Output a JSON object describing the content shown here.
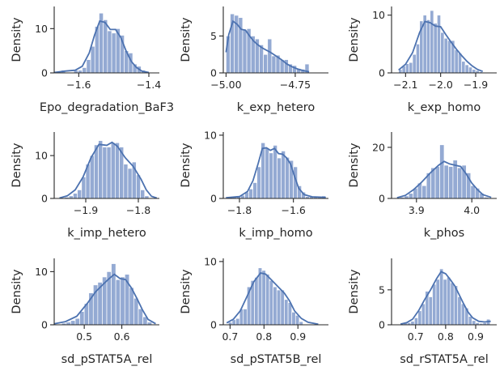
{
  "chart_data": [
    {
      "type": "histogram",
      "xlabel": "Epo_degradation_BaF3",
      "ylabel": "Density",
      "xlim": [
        -1.67,
        -1.37
      ],
      "ylim": [
        0,
        15
      ],
      "xticks": [
        {
          "value": -1.6,
          "label": "−1.6"
        },
        {
          "value": -1.4,
          "label": "−1.4"
        }
      ],
      "yticks": [
        {
          "value": 0,
          "label": "0"
        },
        {
          "value": 10,
          "label": "10"
        }
      ],
      "bin_edges": [
        -1.65,
        -1.638,
        -1.626,
        -1.614,
        -1.602,
        -1.59,
        -1.578,
        -1.566,
        -1.554,
        -1.542,
        -1.53,
        -1.518,
        -1.506,
        -1.494,
        -1.482,
        -1.47,
        -1.458,
        -1.446,
        -1.434,
        -1.422,
        -1.41
      ],
      "densities": [
        0.6,
        0,
        0,
        0.6,
        0.6,
        1.2,
        3.0,
        6.0,
        10.5,
        13.5,
        12.0,
        9.5,
        9.0,
        10.0,
        8.5,
        5.0,
        4.5,
        2.0,
        1.5,
        0.6
      ],
      "kde": [
        [
          -1.67,
          0.1
        ],
        [
          -1.64,
          0.4
        ],
        [
          -1.61,
          0.6
        ],
        [
          -1.59,
          1.5
        ],
        [
          -1.57,
          4.5
        ],
        [
          -1.555,
          8.5
        ],
        [
          -1.54,
          11.7
        ],
        [
          -1.525,
          11.4
        ],
        [
          -1.51,
          9.8
        ],
        [
          -1.495,
          9.8
        ],
        [
          -1.48,
          8.0
        ],
        [
          -1.465,
          5.0
        ],
        [
          -1.45,
          2.6
        ],
        [
          -1.435,
          1.2
        ],
        [
          -1.42,
          0.4
        ],
        [
          -1.4,
          0.1
        ]
      ]
    },
    {
      "type": "histogram",
      "xlabel": "k_exp_hetero",
      "ylabel": "Density",
      "xlim": [
        -5.01,
        -4.63
      ],
      "ylim": [
        0,
        9
      ],
      "xticks": [
        {
          "value": -5.0,
          "label": "−5.00"
        },
        {
          "value": -4.75,
          "label": "−4.75"
        }
      ],
      "yticks": [
        {
          "value": 0,
          "label": "0"
        },
        {
          "value": 5,
          "label": "5"
        }
      ],
      "bin_edges": [
        -5.0,
        -4.985,
        -4.97,
        -4.955,
        -4.94,
        -4.925,
        -4.91,
        -4.895,
        -4.88,
        -4.865,
        -4.85,
        -4.835,
        -4.82,
        -4.805,
        -4.79,
        -4.775,
        -4.76,
        -4.745,
        -4.73,
        -4.715,
        -4.7
      ],
      "densities": [
        5.0,
        8.0,
        7.8,
        7.5,
        5.8,
        6.0,
        5.0,
        4.6,
        3.8,
        2.5,
        4.6,
        2.3,
        2.4,
        1.8,
        1.8,
        1.2,
        1.0,
        0.6,
        0.5,
        1.2
      ],
      "kde": [
        [
          -5.0,
          2.8
        ],
        [
          -4.99,
          5.2
        ],
        [
          -4.975,
          7.0
        ],
        [
          -4.96,
          6.6
        ],
        [
          -4.945,
          5.9
        ],
        [
          -4.93,
          5.8
        ],
        [
          -4.915,
          5.0
        ],
        [
          -4.9,
          4.3
        ],
        [
          -4.885,
          3.8
        ],
        [
          -4.87,
          3.4
        ],
        [
          -4.855,
          3.1
        ],
        [
          -4.84,
          2.8
        ],
        [
          -4.82,
          2.3
        ],
        [
          -4.8,
          1.8
        ],
        [
          -4.78,
          1.2
        ],
        [
          -4.76,
          0.8
        ],
        [
          -4.74,
          0.5
        ],
        [
          -4.72,
          0.3
        ],
        [
          -4.7,
          0.15
        ]
      ]
    },
    {
      "type": "histogram",
      "xlabel": "k_exp_homo",
      "ylabel": "Density",
      "xlim": [
        -2.14,
        -1.84
      ],
      "ylim": [
        0,
        11.5
      ],
      "xticks": [
        {
          "value": -2.1,
          "label": "−2.1"
        },
        {
          "value": -2.0,
          "label": "−2.0"
        },
        {
          "value": -1.9,
          "label": "−1.9"
        }
      ],
      "yticks": [
        {
          "value": 0,
          "label": "0"
        },
        {
          "value": 10,
          "label": "10"
        }
      ],
      "bin_edges": [
        -2.12,
        -2.11,
        -2.1,
        -2.09,
        -2.08,
        -2.07,
        -2.06,
        -2.05,
        -2.04,
        -2.03,
        -2.02,
        -2.01,
        -2.0,
        -1.99,
        -1.98,
        -1.97,
        -1.96,
        -1.95,
        -1.94,
        -1.93,
        -1.92,
        -1.91,
        -1.9,
        -1.89,
        -1.88
      ],
      "densities": [
        0.6,
        1.2,
        1.6,
        1.8,
        3.2,
        5.0,
        9.0,
        10.0,
        9.2,
        10.8,
        8.6,
        10.0,
        7.0,
        6.0,
        5.6,
        5.6,
        4.0,
        3.4,
        2.0,
        1.4,
        1.0,
        0.6,
        0.4,
        0.2
      ],
      "kde": [
        [
          -2.12,
          0.5
        ],
        [
          -2.1,
          1.5
        ],
        [
          -2.08,
          3.5
        ],
        [
          -2.06,
          7.0
        ],
        [
          -2.045,
          8.9
        ],
        [
          -2.03,
          8.7
        ],
        [
          -2.015,
          8.1
        ],
        [
          -2.0,
          8.0
        ],
        [
          -1.985,
          6.6
        ],
        [
          -1.97,
          5.3
        ],
        [
          -1.955,
          4.1
        ],
        [
          -1.94,
          3.0
        ],
        [
          -1.925,
          2.0
        ],
        [
          -1.91,
          1.2
        ],
        [
          -1.895,
          0.6
        ],
        [
          -1.88,
          0.25
        ]
      ]
    },
    {
      "type": "histogram",
      "xlabel": "k_imp_hetero",
      "ylabel": "Density",
      "xlim": [
        -1.96,
        -1.76
      ],
      "ylim": [
        0,
        15.5
      ],
      "xticks": [
        {
          "value": -1.9,
          "label": "−1.9"
        },
        {
          "value": -1.8,
          "label": "−1.8"
        }
      ],
      "yticks": [
        {
          "value": 0,
          "label": "0"
        },
        {
          "value": 10,
          "label": "10"
        }
      ],
      "bin_edges": [
        -1.94,
        -1.932,
        -1.924,
        -1.916,
        -1.908,
        -1.9,
        -1.892,
        -1.884,
        -1.876,
        -1.868,
        -1.86,
        -1.852,
        -1.844,
        -1.836,
        -1.828,
        -1.82,
        -1.812,
        -1.804,
        -1.796,
        -1.788,
        -1.78
      ],
      "densities": [
        0.3,
        0.6,
        1.2,
        2.0,
        5.0,
        8.0,
        10.0,
        12.5,
        13.5,
        12.0,
        12.0,
        13.0,
        13.0,
        12.0,
        8.0,
        7.0,
        8.5,
        5.5,
        2.0,
        0.6
      ],
      "kde": [
        [
          -1.95,
          0.1
        ],
        [
          -1.935,
          0.6
        ],
        [
          -1.92,
          2.0
        ],
        [
          -1.905,
          5.0
        ],
        [
          -1.89,
          9.5
        ],
        [
          -1.875,
          12.6
        ],
        [
          -1.86,
          12.4
        ],
        [
          -1.85,
          13.1
        ],
        [
          -1.84,
          12.2
        ],
        [
          -1.825,
          9.5
        ],
        [
          -1.81,
          7.5
        ],
        [
          -1.795,
          4.5
        ],
        [
          -1.785,
          2.0
        ],
        [
          -1.775,
          0.5
        ],
        [
          -1.765,
          0.1
        ]
      ]
    },
    {
      "type": "histogram",
      "xlabel": "k_imp_homo",
      "ylabel": "Density",
      "xlim": [
        -1.86,
        -1.47
      ],
      "ylim": [
        0,
        10.5
      ],
      "xticks": [
        {
          "value": -1.8,
          "label": "−1.8"
        },
        {
          "value": -1.6,
          "label": "−1.6"
        }
      ],
      "yticks": [
        {
          "value": 0,
          "label": "0"
        },
        {
          "value": 10,
          "label": "10"
        }
      ],
      "bin_edges": [
        -1.84,
        -1.825,
        -1.81,
        -1.795,
        -1.78,
        -1.765,
        -1.75,
        -1.735,
        -1.72,
        -1.705,
        -1.69,
        -1.675,
        -1.66,
        -1.645,
        -1.63,
        -1.615,
        -1.6,
        -1.585,
        -1.57,
        -1.555,
        -1.54,
        -1.525,
        -1.51,
        -1.495,
        -1.48
      ],
      "densities": [
        0.2,
        0.3,
        0.3,
        0.5,
        1.0,
        1.5,
        2.5,
        5.0,
        8.8,
        8.0,
        7.2,
        8.4,
        6.4,
        7.5,
        6.5,
        6.0,
        5.0,
        2.0,
        1.0,
        0.3,
        0.3,
        0.2,
        0.2,
        0.4
      ],
      "kde": [
        [
          -1.85,
          0.1
        ],
        [
          -1.8,
          0.3
        ],
        [
          -1.77,
          1.1
        ],
        [
          -1.75,
          2.8
        ],
        [
          -1.73,
          5.6
        ],
        [
          -1.715,
          7.9
        ],
        [
          -1.7,
          8.0
        ],
        [
          -1.685,
          7.6
        ],
        [
          -1.67,
          7.9
        ],
        [
          -1.655,
          7.1
        ],
        [
          -1.64,
          7.0
        ],
        [
          -1.625,
          6.4
        ],
        [
          -1.61,
          5.4
        ],
        [
          -1.595,
          3.4
        ],
        [
          -1.58,
          1.6
        ],
        [
          -1.56,
          0.6
        ],
        [
          -1.53,
          0.25
        ],
        [
          -1.5,
          0.2
        ],
        [
          -1.48,
          0.15
        ]
      ]
    },
    {
      "type": "histogram",
      "xlabel": "k_phos",
      "ylabel": "Density",
      "xlim": [
        3.855,
        4.045
      ],
      "ylim": [
        0,
        26
      ],
      "xticks": [
        {
          "value": 3.9,
          "label": "3.9"
        },
        {
          "value": 4.0,
          "label": "4.0"
        }
      ],
      "yticks": [
        {
          "value": 0,
          "label": "0"
        },
        {
          "value": 20,
          "label": "20"
        }
      ],
      "bin_edges": [
        3.87,
        3.878,
        3.886,
        3.894,
        3.902,
        3.91,
        3.918,
        3.926,
        3.934,
        3.942,
        3.95,
        3.958,
        3.966,
        3.974,
        3.982,
        3.99,
        3.998,
        4.006,
        4.014,
        4.022,
        4.03
      ],
      "densities": [
        0.5,
        1.0,
        2.0,
        4.0,
        6.0,
        5.0,
        10.0,
        12.0,
        12.5,
        21.0,
        13.0,
        12.5,
        15.0,
        12.0,
        13.0,
        10.0,
        5.0,
        4.0,
        2.0,
        0.5
      ],
      "kde": [
        [
          3.865,
          0.3
        ],
        [
          3.88,
          1.2
        ],
        [
          3.895,
          3.5
        ],
        [
          3.91,
          6.5
        ],
        [
          3.925,
          10.0
        ],
        [
          3.94,
          13.0
        ],
        [
          3.95,
          14.5
        ],
        [
          3.96,
          13.5
        ],
        [
          3.97,
          13.0
        ],
        [
          3.98,
          12.5
        ],
        [
          3.99,
          9.5
        ],
        [
          4.0,
          6.0
        ],
        [
          4.01,
          3.5
        ],
        [
          4.02,
          1.5
        ],
        [
          4.035,
          0.4
        ]
      ]
    },
    {
      "type": "histogram",
      "xlabel": "sd_pSTAT5A_rel",
      "ylabel": "Density",
      "xlim": [
        0.42,
        0.7
      ],
      "ylim": [
        0,
        12.5
      ],
      "xticks": [
        {
          "value": 0.5,
          "label": "0.5"
        },
        {
          "value": 0.6,
          "label": "0.6"
        }
      ],
      "yticks": [
        {
          "value": 0,
          "label": "0"
        },
        {
          "value": 10,
          "label": "10"
        }
      ],
      "bin_edges": [
        0.44,
        0.452,
        0.464,
        0.476,
        0.488,
        0.5,
        0.512,
        0.524,
        0.536,
        0.548,
        0.56,
        0.572,
        0.584,
        0.596,
        0.608,
        0.62,
        0.632,
        0.644,
        0.656,
        0.668,
        0.68
      ],
      "densities": [
        0.3,
        0.5,
        0.8,
        1.2,
        2.5,
        4.0,
        6.0,
        7.5,
        8.0,
        9.0,
        10.0,
        11.5,
        8.5,
        9.0,
        9.5,
        7.0,
        5.0,
        3.0,
        1.5,
        0.5
      ],
      "kde": [
        [
          0.42,
          0.2
        ],
        [
          0.45,
          0.6
        ],
        [
          0.48,
          1.6
        ],
        [
          0.51,
          4.2
        ],
        [
          0.53,
          6.2
        ],
        [
          0.55,
          7.6
        ],
        [
          0.565,
          8.6
        ],
        [
          0.58,
          9.5
        ],
        [
          0.595,
          8.7
        ],
        [
          0.61,
          8.5
        ],
        [
          0.625,
          7.0
        ],
        [
          0.64,
          5.0
        ],
        [
          0.655,
          2.8
        ],
        [
          0.67,
          1.0
        ],
        [
          0.69,
          0.2
        ]
      ]
    },
    {
      "type": "histogram",
      "xlabel": "sd_pSTAT5B_rel",
      "ylabel": "Density",
      "xlim": [
        0.68,
        0.99
      ],
      "ylim": [
        0,
        10.5
      ],
      "xticks": [
        {
          "value": 0.7,
          "label": "0.7"
        },
        {
          "value": 0.8,
          "label": "0.8"
        },
        {
          "value": 0.9,
          "label": "0.9"
        }
      ],
      "yticks": [
        {
          "value": 0,
          "label": "0"
        },
        {
          "value": 10,
          "label": "10"
        }
      ],
      "bin_edges": [
        0.695,
        0.706,
        0.717,
        0.728,
        0.739,
        0.75,
        0.761,
        0.772,
        0.783,
        0.794,
        0.805,
        0.816,
        0.827,
        0.838,
        0.849,
        0.86,
        0.871,
        0.882,
        0.893,
        0.904,
        0.915
      ],
      "densities": [
        0.4,
        0.8,
        1.0,
        2.5,
        2.5,
        6.0,
        7.0,
        7.5,
        9.0,
        8.6,
        8.0,
        7.0,
        6.0,
        5.5,
        5.5,
        4.0,
        3.5,
        2.0,
        1.5,
        0.5
      ],
      "kde": [
        [
          0.69,
          0.3
        ],
        [
          0.71,
          0.9
        ],
        [
          0.73,
          2.2
        ],
        [
          0.75,
          4.5
        ],
        [
          0.77,
          6.8
        ],
        [
          0.79,
          8.2
        ],
        [
          0.805,
          8.0
        ],
        [
          0.82,
          7.2
        ],
        [
          0.84,
          6.1
        ],
        [
          0.86,
          5.0
        ],
        [
          0.875,
          3.8
        ],
        [
          0.89,
          2.2
        ],
        [
          0.91,
          1.0
        ],
        [
          0.93,
          0.4
        ],
        [
          0.96,
          0.1
        ]
      ]
    },
    {
      "type": "histogram",
      "xlabel": "sd_rSTAT5A_rel",
      "ylabel": "Density",
      "xlim": [
        0.62,
        0.97
      ],
      "ylim": [
        0,
        9.5
      ],
      "xticks": [
        {
          "value": 0.7,
          "label": "0.7"
        },
        {
          "value": 0.8,
          "label": "0.8"
        },
        {
          "value": 0.9,
          "label": "0.9"
        }
      ],
      "yticks": [
        {
          "value": 0,
          "label": "0"
        },
        {
          "value": 5,
          "label": "5"
        }
      ],
      "bin_edges": [
        0.66,
        0.672,
        0.684,
        0.696,
        0.708,
        0.72,
        0.732,
        0.744,
        0.756,
        0.768,
        0.78,
        0.792,
        0.804,
        0.816,
        0.828,
        0.84,
        0.852,
        0.864,
        0.876,
        0.888,
        0.9,
        0.912,
        0.924,
        0.936,
        0.948
      ],
      "densities": [
        0.3,
        0.3,
        0.5,
        1.0,
        2.0,
        3.0,
        4.8,
        4.0,
        5.8,
        6.5,
        8.0,
        6.5,
        6.8,
        6.0,
        5.6,
        4.0,
        3.0,
        2.4,
        1.2,
        0.6,
        0.3,
        0.2,
        0.3,
        0.8
      ],
      "kde": [
        [
          0.65,
          0.1
        ],
        [
          0.67,
          0.3
        ],
        [
          0.69,
          0.8
        ],
        [
          0.71,
          2.0
        ],
        [
          0.73,
          3.6
        ],
        [
          0.75,
          5.0
        ],
        [
          0.77,
          6.6
        ],
        [
          0.785,
          7.6
        ],
        [
          0.8,
          7.3
        ],
        [
          0.815,
          6.5
        ],
        [
          0.83,
          5.6
        ],
        [
          0.845,
          4.3
        ],
        [
          0.86,
          3.0
        ],
        [
          0.875,
          1.8
        ],
        [
          0.89,
          1.0
        ],
        [
          0.91,
          0.5
        ],
        [
          0.93,
          0.4
        ],
        [
          0.95,
          0.5
        ]
      ]
    }
  ]
}
